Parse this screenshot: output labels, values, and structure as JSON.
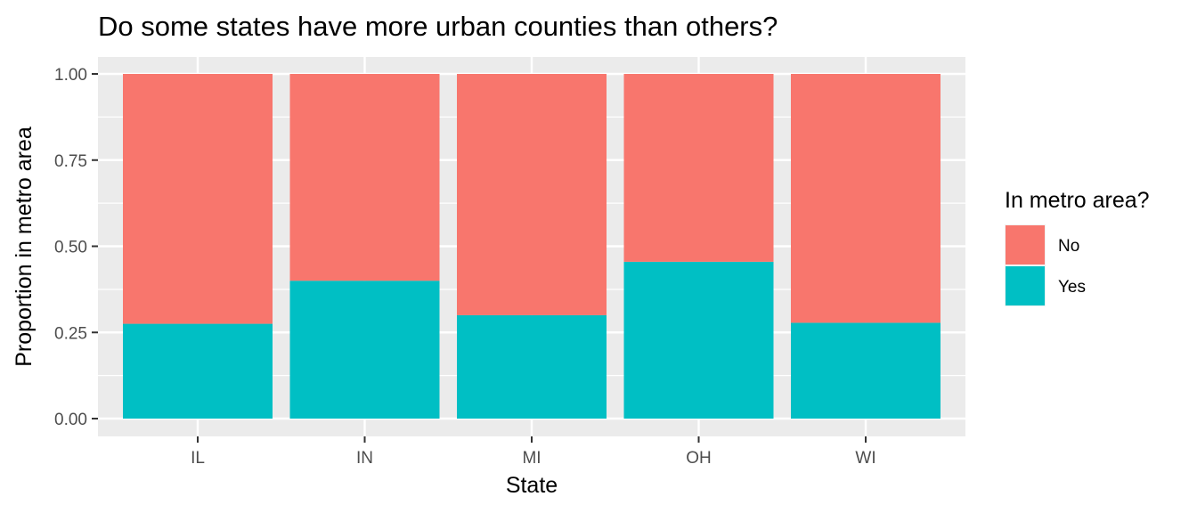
{
  "chart_data": {
    "type": "bar",
    "stacked": true,
    "title": "Do some states have more urban counties than others?",
    "xlabel": "State",
    "ylabel": "Proportion in metro area",
    "categories": [
      "IL",
      "IN",
      "MI",
      "OH",
      "WI"
    ],
    "series": [
      {
        "name": "No",
        "color": "#F8766D",
        "values": [
          0.725,
          0.6,
          0.7,
          0.545,
          0.722
        ]
      },
      {
        "name": "Yes",
        "color": "#00BFC4",
        "values": [
          0.275,
          0.4,
          0.3,
          0.455,
          0.278
        ]
      }
    ],
    "ylim": [
      0,
      1
    ],
    "yticks": [
      "0.00",
      "0.25",
      "0.50",
      "0.75",
      "1.00"
    ],
    "legend": {
      "title": "In metro area?",
      "position": "right"
    },
    "grid": true,
    "panel_background": "#EBEBEB"
  }
}
